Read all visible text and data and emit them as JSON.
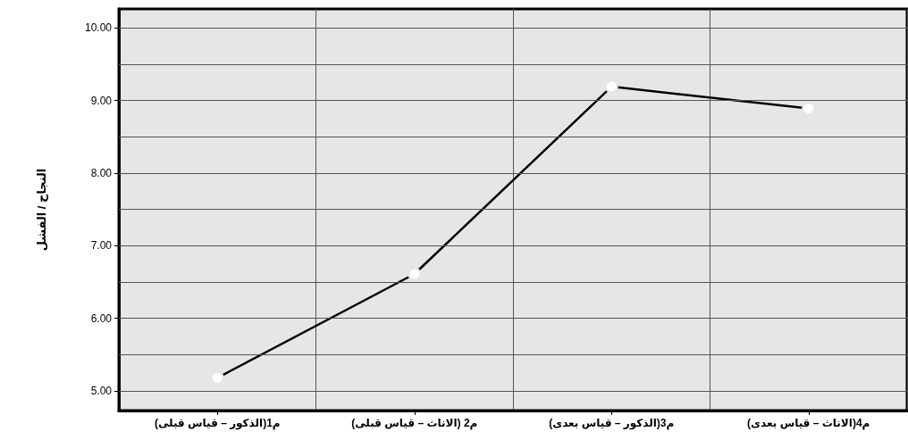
{
  "chart_data": {
    "type": "line",
    "ylabel": "النجاح / الفشل",
    "categories": [
      "م1(الذكور – قياس قبلى)",
      "م2 (الاناث – قياس قبلى)",
      "م3(الذكور – قياس بعدى)",
      "م4(الاناث – قياس بعدى)"
    ],
    "series": [
      {
        "color": "#000000",
        "values": [
          5.18,
          6.61,
          9.19,
          8.89
        ]
      }
    ],
    "ylim": [
      4.73,
      10.26
    ],
    "yticks": [
      {
        "value": 5,
        "label": "5.00"
      },
      {
        "value": 5.5,
        "label": null
      },
      {
        "value": 6,
        "label": "6.00"
      },
      {
        "value": 6.5,
        "label": null
      },
      {
        "value": 7,
        "label": "7.00"
      },
      {
        "value": 7.5,
        "label": null
      },
      {
        "value": 8,
        "label": "8.00"
      },
      {
        "value": 8.5,
        "label": null
      },
      {
        "value": 9,
        "label": "9.00"
      },
      {
        "value": 9.5,
        "label": null
      },
      {
        "value": 10,
        "label": "10.00"
      }
    ],
    "grid": true,
    "marker": "circle",
    "line_style": "solid"
  }
}
